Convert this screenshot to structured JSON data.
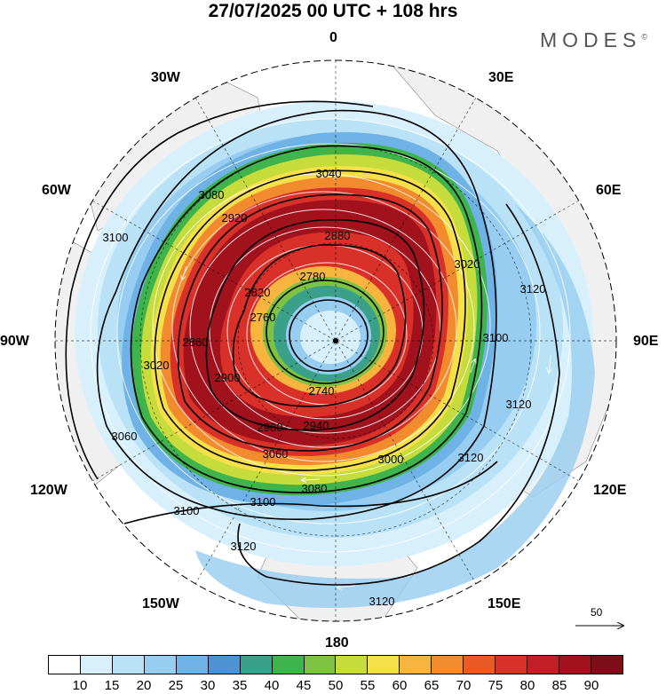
{
  "title": "27/07/2025  00 UTC  + 108 hrs",
  "brand": "MODES",
  "brand_mark": "©",
  "lon_labels": {
    "n": "0",
    "ne": "30E",
    "nw": "30W",
    "e1": "60E",
    "w1": "60W",
    "e": "90E",
    "w": "90W",
    "se1": "120E",
    "sw1": "120W",
    "se": "150E",
    "sw": "150W",
    "s": "180"
  },
  "contour_labels": [
    "3040",
    "3080",
    "3100",
    "2880",
    "2920",
    "2780",
    "2760",
    "2740",
    "2820",
    "2860",
    "3020",
    "2900",
    "2980",
    "3060",
    "3000",
    "2940",
    "3120"
  ],
  "vector_reference": "50",
  "colorbar": {
    "colors": [
      "#ffffff",
      "#d7f0fb",
      "#b9e2f7",
      "#96cdf0",
      "#6fb2e6",
      "#4d93d3",
      "#3ba08a",
      "#3fb34c",
      "#7cc243",
      "#c5dc3c",
      "#f5e04a",
      "#f7b43f",
      "#f28a2e",
      "#ea5a27",
      "#d93029",
      "#bf1f25",
      "#a1121d",
      "#7d0d17"
    ],
    "ticks": [
      "10",
      "15",
      "20",
      "25",
      "30",
      "35",
      "40",
      "45",
      "50",
      "55",
      "60",
      "65",
      "70",
      "75",
      "80",
      "85",
      "90"
    ]
  }
}
